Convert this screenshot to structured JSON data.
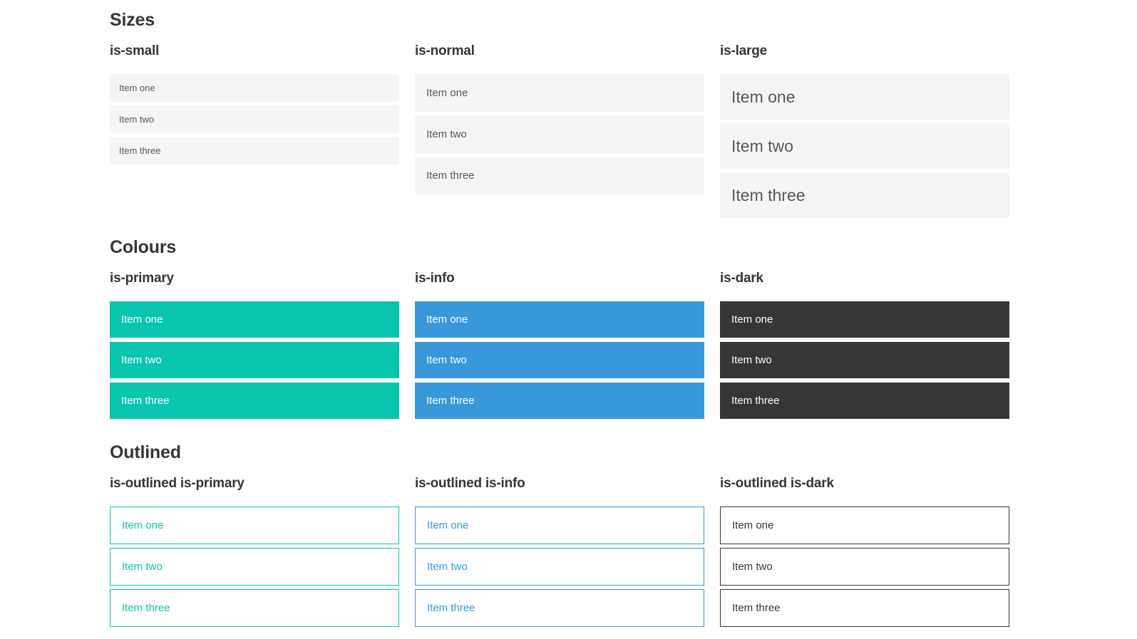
{
  "page": {
    "background": "#ffffff"
  },
  "theme": {
    "heading_color": "#363636",
    "item_bg": "#f5f5f6",
    "item_text": "#55595d",
    "primary": "#0ac6b0",
    "info": "#3998da",
    "dark": "#363636",
    "on_color_text": "#ffffff"
  },
  "sections": [
    {
      "title": "Sizes",
      "columns": [
        {
          "label": "is-small",
          "variant": "small",
          "items": [
            "Item one",
            "Item two",
            "Item three"
          ]
        },
        {
          "label": "is-normal",
          "variant": "normal",
          "items": [
            "Item one",
            "Item two",
            "Item three"
          ]
        },
        {
          "label": "is-large",
          "variant": "large",
          "items": [
            "Item one",
            "Item two",
            "Item three"
          ]
        }
      ]
    },
    {
      "title": "Colours",
      "columns": [
        {
          "label": "is-primary",
          "variant": "primary",
          "items": [
            "Item one",
            "Item two",
            "Item three"
          ]
        },
        {
          "label": "is-info",
          "variant": "info",
          "items": [
            "Item one",
            "Item two",
            "Item three"
          ]
        },
        {
          "label": "is-dark",
          "variant": "dark",
          "items": [
            "Item one",
            "Item two",
            "Item three"
          ]
        }
      ]
    },
    {
      "title": "Outlined",
      "columns": [
        {
          "label": "is-outlined is-primary",
          "variant": "outlined-primary",
          "items": [
            "Item one",
            "Item two",
            "Item three"
          ]
        },
        {
          "label": "is-outlined is-info",
          "variant": "outlined-info",
          "items": [
            "Item one",
            "Item two",
            "Item three"
          ]
        },
        {
          "label": "is-outlined is-dark",
          "variant": "outlined-dark",
          "items": [
            "Item one",
            "Item two",
            "Item three"
          ]
        }
      ]
    }
  ]
}
